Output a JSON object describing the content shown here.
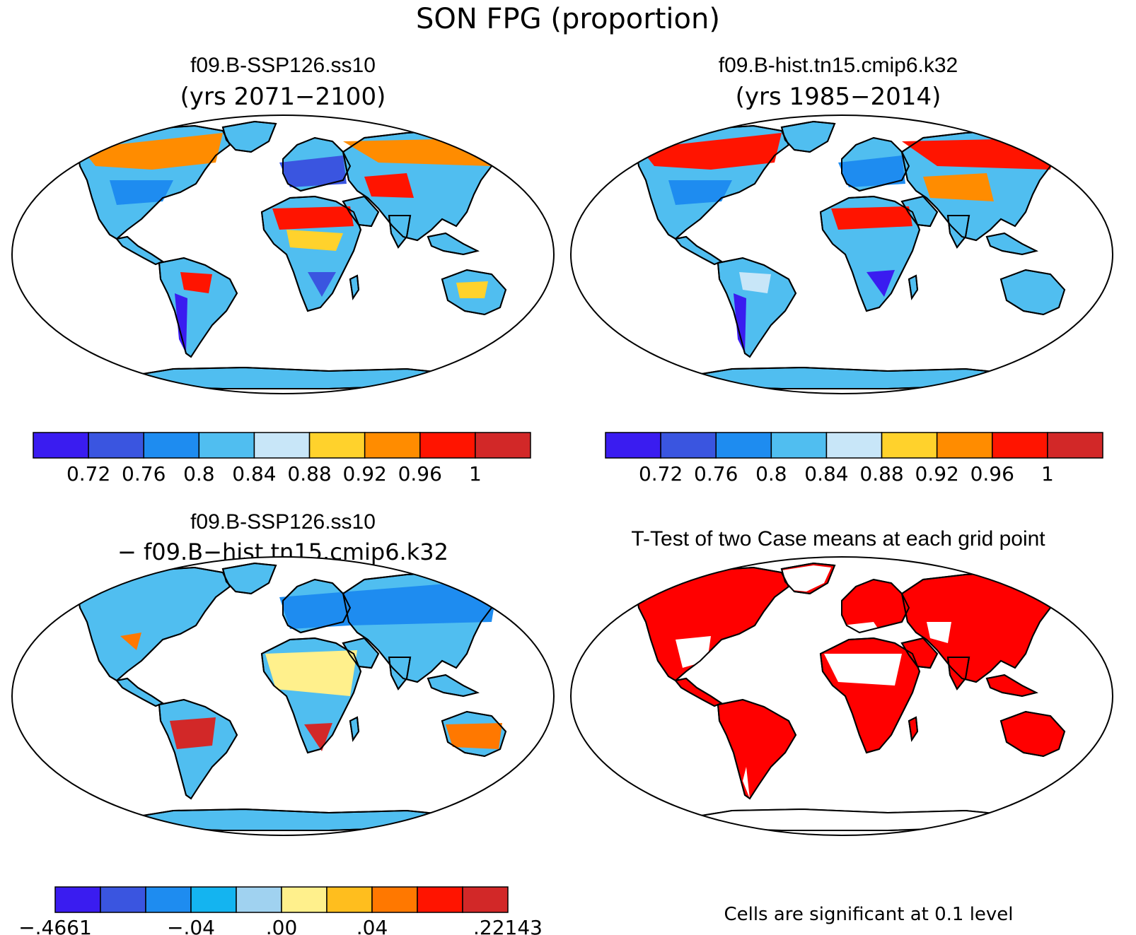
{
  "figure": {
    "title": "SON FPG (proportion)",
    "panels": [
      {
        "id": "future",
        "title": "f09.B-SSP126.ss10",
        "subtitle": "(yrs 2071−2100)",
        "colorbar": {
          "colors": [
            "#3a1cf0",
            "#3a55e0",
            "#1e8cf0",
            "#50bef0",
            "#c8e6f8",
            "#ffd22c",
            "#ff8c00",
            "#ff1400",
            "#d22828"
          ],
          "labels": [
            "0.72",
            "0.76",
            "0.8",
            "0.84",
            "0.88",
            "0.92",
            "0.96",
            "1"
          ]
        }
      },
      {
        "id": "historical",
        "title": "f09.B-hist.tn15.cmip6.k32",
        "subtitle": "(yrs 1985−2014)",
        "colorbar": {
          "colors": [
            "#3a1cf0",
            "#3a55e0",
            "#1e8cf0",
            "#50bef0",
            "#c8e6f8",
            "#ffd22c",
            "#ff8c00",
            "#ff1400",
            "#d22828"
          ],
          "labels": [
            "0.72",
            "0.76",
            "0.8",
            "0.84",
            "0.88",
            "0.92",
            "0.96",
            "1"
          ]
        }
      },
      {
        "id": "difference",
        "title": "f09.B-SSP126.ss10",
        "subtitle": "− f09.B−hist.tn15.cmip6.k32",
        "colorbar": {
          "colors": [
            "#3a1cf0",
            "#3a55e0",
            "#1e8cf0",
            "#14b4f0",
            "#a0d2f0",
            "#fff08c",
            "#ffbe1e",
            "#ff7800",
            "#ff1400",
            "#d22828"
          ],
          "labels": [
            "−.4661",
            "−.04",
            ".00",
            ".04",
            ".22143"
          ]
        }
      },
      {
        "id": "ttest",
        "title": "T-Test of two Case means at each grid point",
        "note": "Cells are significant at 0.1 level",
        "significance_color": "#ff0000"
      }
    ]
  }
}
